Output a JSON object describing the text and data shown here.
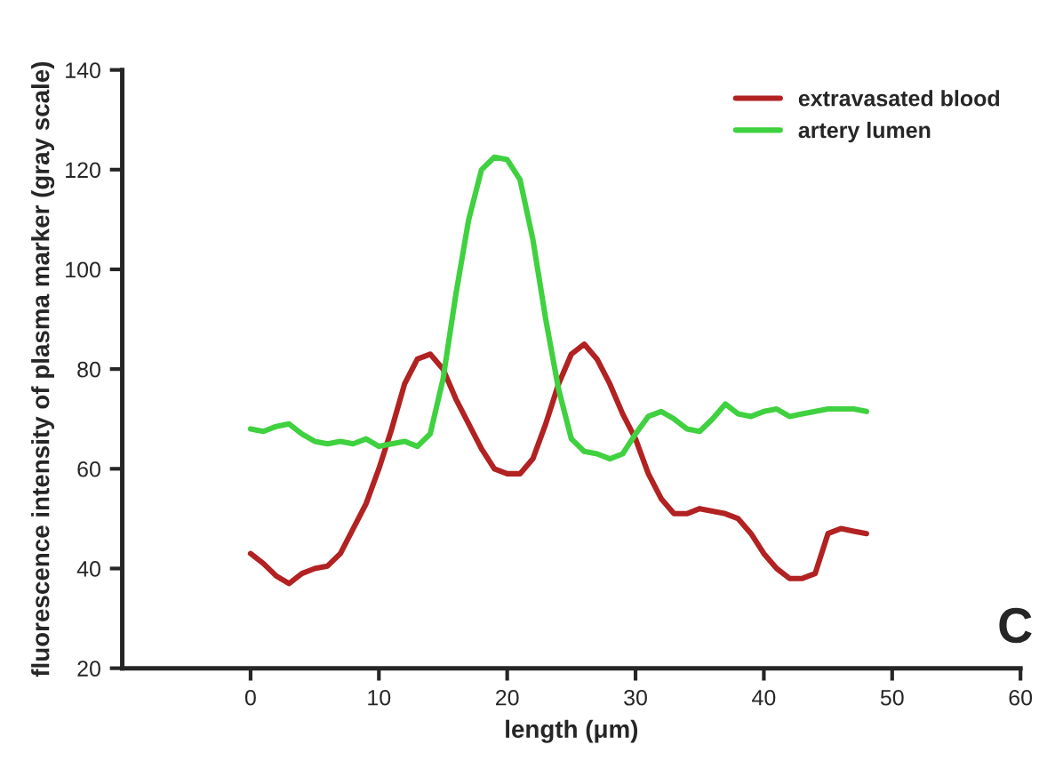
{
  "chart_data": {
    "type": "line",
    "xlabel": "length (μm)",
    "ylabel": "fluorescence intensity of plasma marker (gray scale)",
    "annotations": [
      "C"
    ],
    "xlim": [
      -10,
      60
    ],
    "xticks": [
      0,
      10,
      20,
      30,
      40,
      50,
      60
    ],
    "ylim": [
      20,
      140
    ],
    "yticks": [
      20,
      40,
      60,
      80,
      100,
      120,
      140
    ],
    "grid": false,
    "legend": "top right",
    "marker": "none",
    "line_style": "solid",
    "x": [
      0,
      1,
      2,
      3,
      4,
      5,
      6,
      7,
      8,
      9,
      10,
      11,
      12,
      13,
      14,
      15,
      16,
      17,
      18,
      19,
      20,
      21,
      22,
      23,
      24,
      25,
      26,
      27,
      28,
      29,
      30,
      31,
      32,
      33,
      34,
      35,
      36,
      37,
      38,
      39,
      40,
      41,
      42,
      43,
      44,
      45,
      46,
      47,
      48
    ],
    "series": [
      {
        "name": "extravasated blood",
        "color": "#b22222",
        "values": [
          43,
          41,
          38.5,
          37,
          39,
          40,
          40.5,
          43,
          48,
          53,
          60,
          68,
          77,
          82,
          83,
          80,
          74,
          69,
          64,
          60,
          59,
          59,
          62,
          69,
          77,
          83,
          85,
          82,
          77,
          71,
          66,
          59,
          54,
          51,
          51,
          52,
          51.5,
          51,
          50,
          47,
          43,
          40,
          38,
          38,
          39,
          47,
          48,
          47.5,
          47
        ]
      },
      {
        "name": "artery lumen",
        "color": "#3fd13f",
        "values": [
          68,
          67.5,
          68.5,
          69,
          67,
          65.5,
          65,
          65.5,
          65,
          66,
          64.5,
          65,
          65.5,
          64.5,
          67,
          78,
          95,
          110,
          120,
          122.5,
          122,
          118,
          106,
          90,
          76,
          66,
          63.5,
          63,
          62,
          63,
          67,
          70.5,
          71.5,
          70,
          68,
          67.5,
          70,
          73,
          71,
          70.5,
          71.5,
          72,
          70.5,
          71,
          71.5,
          72,
          72,
          72,
          71.5
        ]
      }
    ]
  }
}
